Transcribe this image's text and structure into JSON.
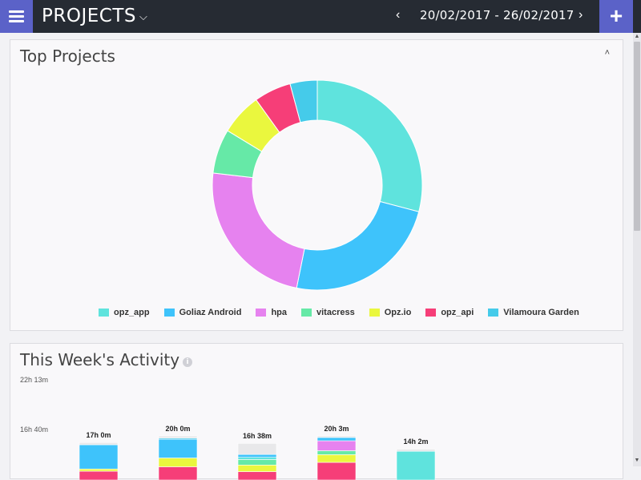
{
  "header": {
    "title": "PROJECTS",
    "date_range": "20/02/2017 - 26/02/2017",
    "prev": "‹",
    "next": "›",
    "add": "+"
  },
  "top_projects": {
    "title": "Top Projects",
    "collapse": "˄"
  },
  "activity": {
    "title": "This Week's Activity",
    "info": "i",
    "y_ticks": [
      "22h 13m",
      "16h 40m"
    ]
  },
  "colors": {
    "opz_app": "#5fe3dd",
    "goliaz_android": "#3ec3fb",
    "hpa": "#e682ef",
    "vitacress": "#66e9a7",
    "opz_io": "#eaf73e",
    "opz_api": "#f63e78",
    "vilamoura_garden": "#45cbea",
    "untracked": "#e8e8ea"
  },
  "chart_data": [
    {
      "type": "pie",
      "title": "Top Projects",
      "labels": [
        "opz_app",
        "Goliaz Android",
        "hpa",
        "vitacress",
        "Opz.io",
        "opz_api",
        "Vilamoura Garden"
      ],
      "values": [
        28.5,
        23.6,
        23.2,
        6.7,
        6.3,
        5.6,
        4.1
      ],
      "colors": [
        "#5fe3dd",
        "#3ec3fb",
        "#e682ef",
        "#66e9a7",
        "#eaf73e",
        "#f63e78",
        "#45cbea"
      ],
      "legend": "bottom"
    },
    {
      "type": "bar",
      "title": "This Week's Activity",
      "ylim": [
        0,
        22.2167
      ],
      "y_tick_labels": [
        "22h 13m",
        "16h 40m"
      ],
      "bars": [
        {
          "label": "17h 0m",
          "total": 17.0,
          "segments": [
            {
              "project": "opz_api",
              "value": 4.0,
              "color": "#f63e78"
            },
            {
              "project": "Opz.io",
              "value": 1.0,
              "color": "#eaf73e"
            },
            {
              "project": "Goliaz Android",
              "value": 11.0,
              "color": "#3ec3fb"
            },
            {
              "project": "other",
              "value": 1.0,
              "color": "#e8e8ea"
            }
          ]
        },
        {
          "label": "20h 0m",
          "total": 20.0,
          "segments": [
            {
              "project": "opz_api",
              "value": 6.0,
              "color": "#f63e78"
            },
            {
              "project": "Opz.io",
              "value": 4.0,
              "color": "#eaf73e"
            },
            {
              "project": "Goliaz Android",
              "value": 8.5,
              "color": "#3ec3fb"
            },
            {
              "project": "Vilamoura Garden",
              "value": 0.5,
              "color": "#45cbea"
            },
            {
              "project": "other",
              "value": 1.0,
              "color": "#e8e8ea"
            }
          ]
        },
        {
          "label": "16h 38m",
          "total": 16.63,
          "segments": [
            {
              "project": "opz_api",
              "value": 3.8,
              "color": "#f63e78"
            },
            {
              "project": "Opz.io",
              "value": 3.0,
              "color": "#eaf73e"
            },
            {
              "project": "vitacress",
              "value": 2.5,
              "color": "#66e9a7"
            },
            {
              "project": "opz_app",
              "value": 1.0,
              "color": "#5fe3dd"
            },
            {
              "project": "Goliaz Android",
              "value": 1.3,
              "color": "#3ec3fb"
            },
            {
              "project": "other",
              "value": 5.03,
              "color": "#e8e8ea"
            }
          ]
        },
        {
          "label": "20h 3m",
          "total": 20.05,
          "segments": [
            {
              "project": "opz_api",
              "value": 8.0,
              "color": "#f63e78"
            },
            {
              "project": "Opz.io",
              "value": 3.5,
              "color": "#eaf73e"
            },
            {
              "project": "vitacress",
              "value": 1.8,
              "color": "#66e9a7"
            },
            {
              "project": "hpa",
              "value": 4.5,
              "color": "#e682ef"
            },
            {
              "project": "Goliaz Android",
              "value": 1.5,
              "color": "#3ec3fb"
            },
            {
              "project": "other",
              "value": 0.75,
              "color": "#e8e8ea"
            }
          ]
        },
        {
          "label": "14h 2m",
          "total": 14.03,
          "segments": [
            {
              "project": "opz_app",
              "value": 13.03,
              "color": "#5fe3dd"
            },
            {
              "project": "other",
              "value": 1.0,
              "color": "#e8e8ea"
            }
          ]
        }
      ]
    }
  ]
}
